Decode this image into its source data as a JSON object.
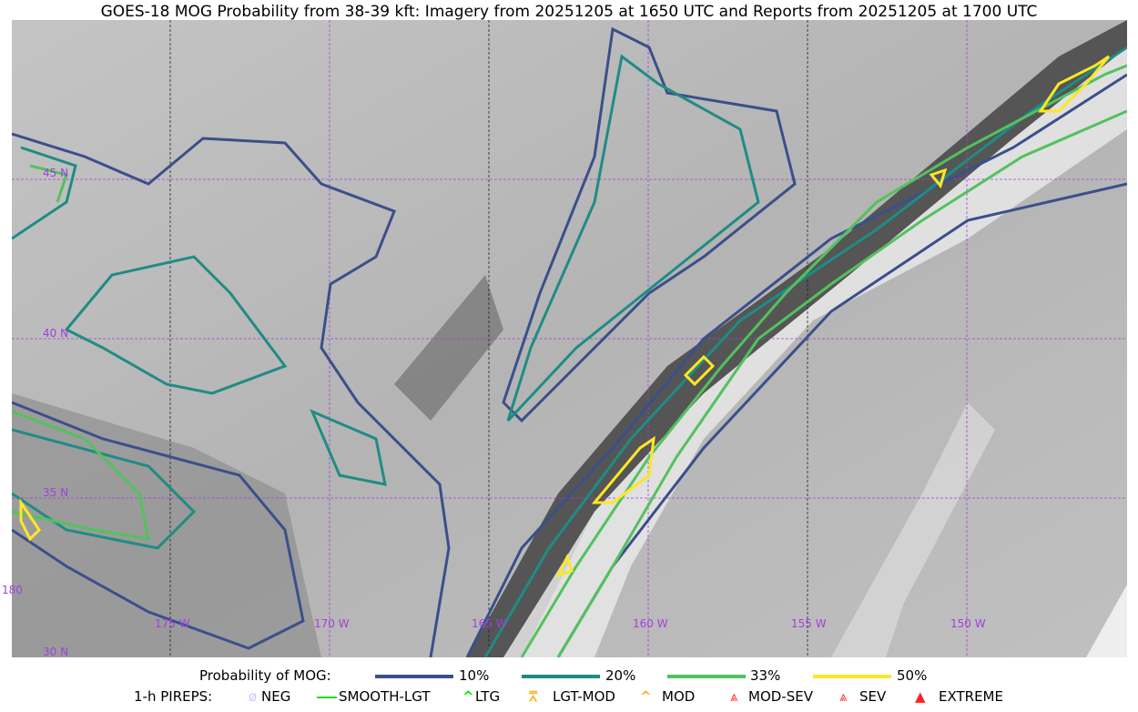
{
  "title": "GOES-18 MOG Probability from 38-39 kft: Imagery from 20251205 at 1650 UTC and Reports from 20251205 at 1700 UTC",
  "map": {
    "lon_labels": [
      "175 W",
      "170 W",
      "165 W",
      "160 W",
      "155 W",
      "150 W"
    ],
    "lat_labels": [
      "30 N",
      "35 N",
      "40 N",
      "45 N"
    ],
    "edge_label": "180",
    "grid_color": "#a040e0"
  },
  "legend": {
    "probability_title": "Probability of MOG:",
    "probability_levels": [
      {
        "label": "10%",
        "color": "#3b4f8a"
      },
      {
        "label": "20%",
        "color": "#1f8c84"
      },
      {
        "label": "33%",
        "color": "#52c25e"
      },
      {
        "label": "50%",
        "color": "#fde725"
      }
    ],
    "pireps_title": "1-h PIREPS:",
    "pireps": [
      {
        "label": "NEG",
        "icon": "neg-symbol-icon",
        "color": "#c8c8ff"
      },
      {
        "label": "SMOOTH-LGT",
        "icon": "dash-icon",
        "color": "#22dd22"
      },
      {
        "label": "LTG",
        "icon": "caret-icon",
        "color": "#00ee00"
      },
      {
        "label": "LGT-MOD",
        "icon": "caret-bar-icon",
        "color": "#ffb020"
      },
      {
        "label": "MOD",
        "icon": "caret-icon",
        "color": "#ffb020"
      },
      {
        "label": "MOD-SEV",
        "icon": "double-caret-icon",
        "color": "#ff3030"
      },
      {
        "label": "SEV",
        "icon": "double-caret-icon",
        "color": "#ff3030"
      },
      {
        "label": "EXTREME",
        "icon": "filled-triangle-icon",
        "color": "#ff2020"
      }
    ]
  }
}
